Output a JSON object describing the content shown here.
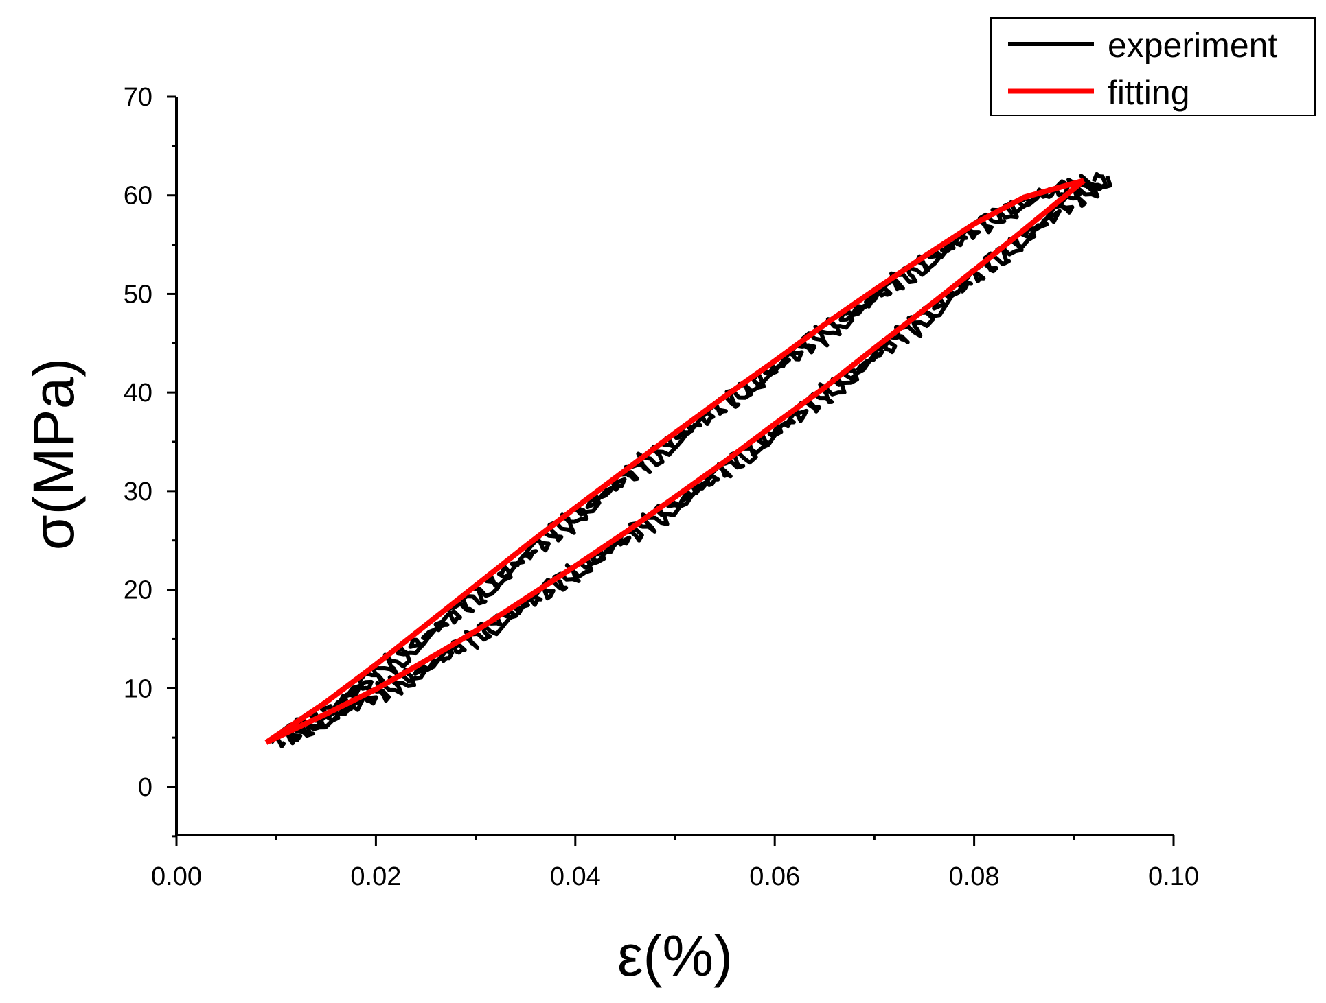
{
  "chart_data": {
    "type": "line",
    "xlabel": "ε(%)",
    "ylabel": "σ(MPa)",
    "xlim": [
      0.0,
      0.1
    ],
    "ylim": [
      -5,
      70
    ],
    "xticks": [
      "0.00",
      "0.02",
      "0.04",
      "0.06",
      "0.08",
      "0.10"
    ],
    "yticks": [
      "0",
      "10",
      "20",
      "30",
      "40",
      "50",
      "60",
      "70"
    ],
    "legend_position": "top-right",
    "series": [
      {
        "name": "experiment",
        "color": "#000000",
        "style": "noisy hysteresis loop",
        "loading": {
          "x": [
            0.0095,
            0.015,
            0.02,
            0.025,
            0.03,
            0.035,
            0.04,
            0.045,
            0.05,
            0.055,
            0.06,
            0.065,
            0.07,
            0.075,
            0.08,
            0.085,
            0.092
          ],
          "y": [
            4.7,
            8.2,
            11.9,
            15.9,
            19.9,
            24.1,
            28.1,
            32.0,
            35.8,
            39.5,
            43.0,
            46.7,
            50.2,
            53.7,
            57.0,
            59.8,
            61.6
          ]
        },
        "unloading": {
          "x": [
            0.092,
            0.085,
            0.08,
            0.075,
            0.07,
            0.065,
            0.06,
            0.055,
            0.05,
            0.045,
            0.04,
            0.035,
            0.03,
            0.025,
            0.02,
            0.015,
            0.0095
          ],
          "y": [
            61.6,
            56.4,
            52.4,
            48.3,
            44.3,
            40.4,
            36.6,
            32.8,
            29.2,
            25.7,
            22.4,
            19.0,
            15.8,
            12.6,
            9.7,
            7.3,
            4.7
          ]
        }
      },
      {
        "name": "fitting",
        "color": "#ff0000",
        "style": "smooth hysteresis loop",
        "loading": {
          "x": [
            0.009,
            0.015,
            0.02,
            0.025,
            0.03,
            0.035,
            0.04,
            0.045,
            0.05,
            0.055,
            0.06,
            0.065,
            0.07,
            0.075,
            0.08,
            0.085,
            0.091
          ],
          "y": [
            4.5,
            8.6,
            12.4,
            16.4,
            20.4,
            24.4,
            28.3,
            32.1,
            35.9,
            39.6,
            43.2,
            46.9,
            50.4,
            53.8,
            57.1,
            59.8,
            61.5
          ]
        },
        "unloading": {
          "x": [
            0.091,
            0.085,
            0.08,
            0.075,
            0.07,
            0.065,
            0.06,
            0.055,
            0.05,
            0.045,
            0.04,
            0.035,
            0.03,
            0.025,
            0.02,
            0.015,
            0.009
          ],
          "y": [
            61.5,
            56.5,
            52.4,
            48.4,
            44.5,
            40.5,
            36.8,
            33.0,
            29.4,
            25.8,
            22.4,
            19.1,
            15.8,
            12.8,
            9.9,
            7.4,
            4.5
          ]
        }
      }
    ]
  }
}
